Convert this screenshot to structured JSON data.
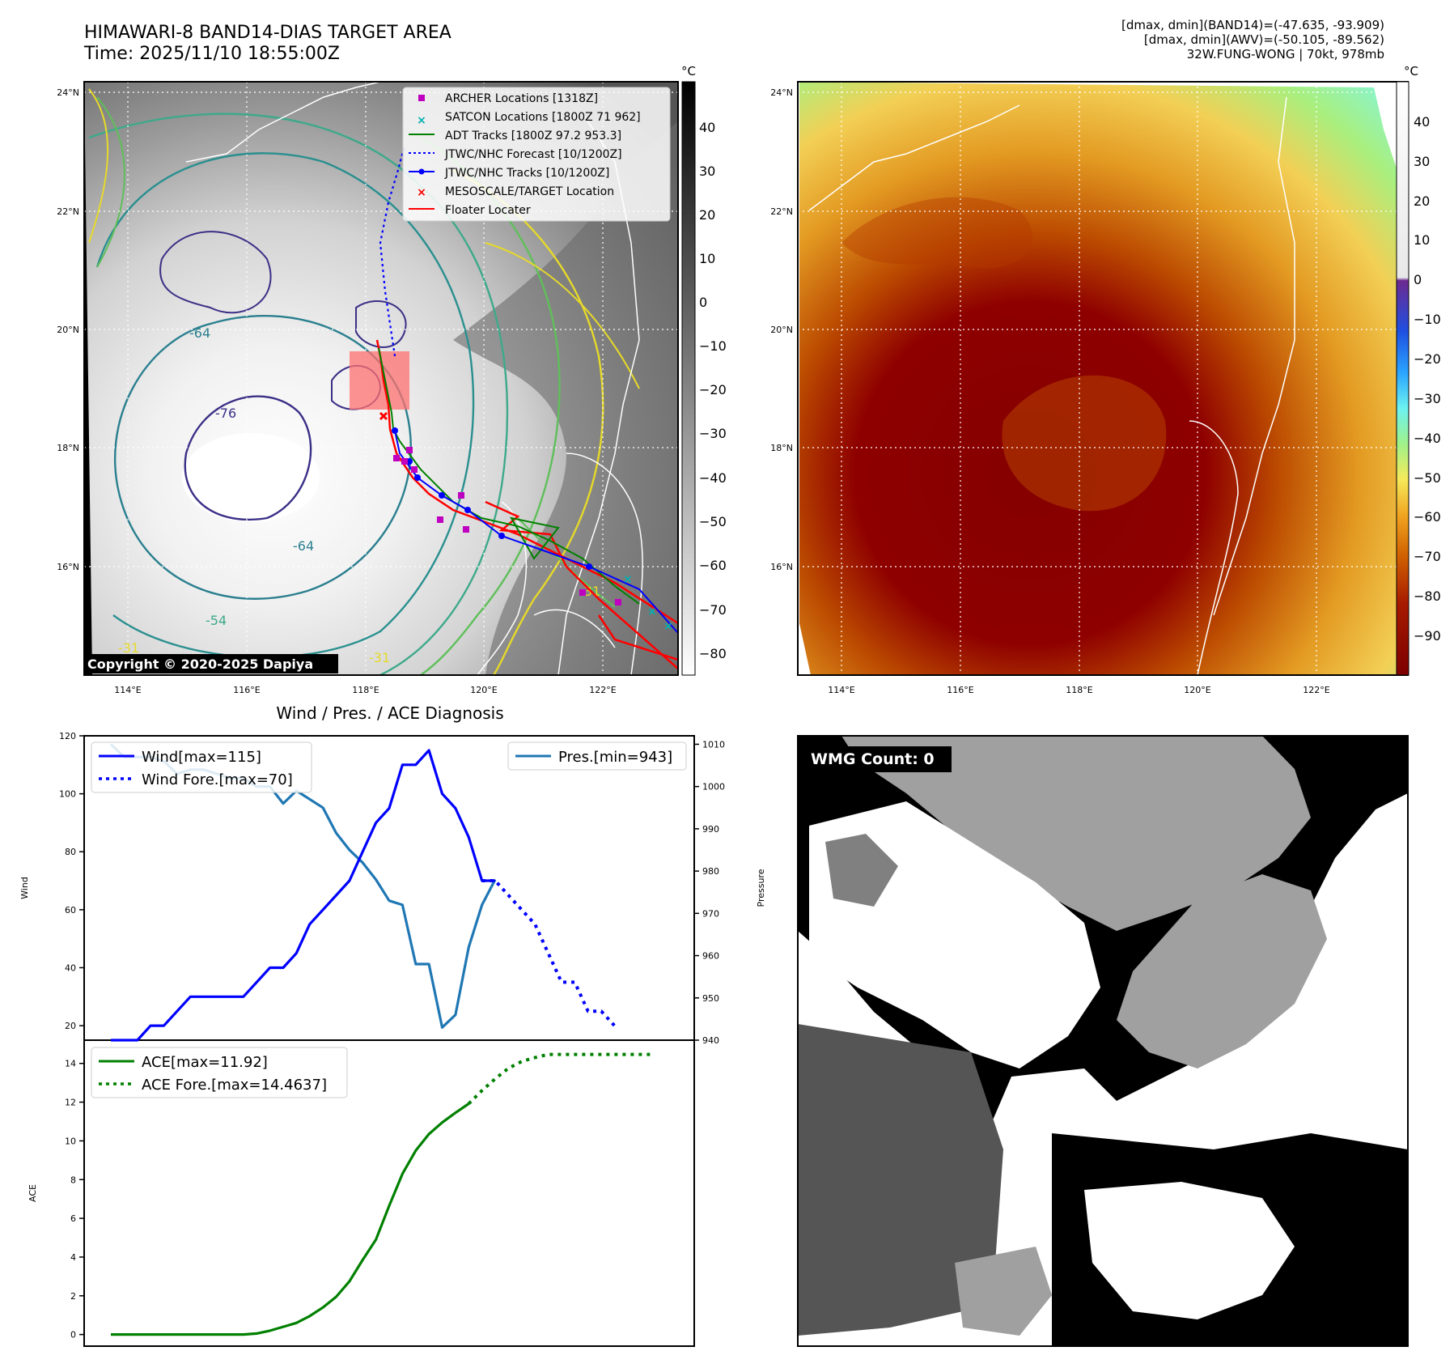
{
  "header": {
    "title_line1": "HIMAWARI-8 BAND14-DIAS TARGET AREA",
    "title_line2": "Time: 2025/11/10 18:55:00Z",
    "info_line1": "[dmax, dmin](BAND14)=(-47.635, -93.909)",
    "info_line2": "[dmax, dmin](AWV)=(-50.105, -89.562)",
    "info_line3": "32W.FUNG-WONG | 70kt, 978mb"
  },
  "map": {
    "lon_ticks": [
      "114°E",
      "116°E",
      "118°E",
      "120°E",
      "122°E"
    ],
    "lat_ticks": [
      "24°N",
      "22°N",
      "20°N",
      "18°N",
      "16°N"
    ],
    "copyright": "Copyright © 2020-2025 Dapiya",
    "contour_labels": [
      "-64",
      "-76",
      "-64",
      "-54",
      "-31",
      "-31",
      "-31"
    ],
    "legend": [
      "ARCHER Locations [1318Z]",
      "SATCON Locations [1800Z 71 962]",
      "ADT Tracks [1800Z 97.2 953.3]",
      "JTWC/NHC Forecast [10/1200Z]",
      "JTWC/NHC Tracks [10/1200Z]",
      "MESOSCALE/TARGET Location",
      "Floater Locater"
    ],
    "colors": {
      "archer": "#c000c0",
      "satcon": "#00b0b0",
      "adt": "#008000",
      "jtwc": "#0000ff",
      "target": "#ff0000",
      "floater": "#ff0000"
    }
  },
  "colorbar_left": {
    "unit": "°C",
    "ticks": [
      "40",
      "30",
      "20",
      "10",
      "0",
      "−10",
      "−20",
      "−30",
      "−40",
      "−50",
      "−60",
      "−70",
      "−80"
    ]
  },
  "colorbar_right": {
    "unit": "°C",
    "ticks": [
      "40",
      "30",
      "20",
      "10",
      "0",
      "−10",
      "−20",
      "−30",
      "−40",
      "−50",
      "−60",
      "−70",
      "−80",
      "−90"
    ]
  },
  "wmg": {
    "label": "WMG Count: 0"
  },
  "chart_data": [
    {
      "type": "line",
      "title": "Wind / Pres. / ACE Diagnosis",
      "ylabel": "Wind",
      "ylim": [
        15,
        120
      ],
      "yticks": [
        "20",
        "40",
        "60",
        "80",
        "100",
        "120"
      ],
      "y2label": "Pressure",
      "y2lim": [
        940,
        1012
      ],
      "y2ticks": [
        "940",
        "950",
        "960",
        "970",
        "980",
        "990",
        "1000",
        "1010"
      ],
      "x_count": 43,
      "series": [
        {
          "name": "Wind[max=115]",
          "color": "#0000ff",
          "style": "solid",
          "axis": "left",
          "values": [
            15,
            15,
            15,
            20,
            20,
            25,
            30,
            30,
            30,
            30,
            30,
            35,
            40,
            40,
            45,
            55,
            60,
            65,
            70,
            80,
            90,
            95,
            110,
            110,
            115,
            100,
            95,
            85,
            70,
            70
          ]
        },
        {
          "name": "Wind Fore.[max=70]",
          "color": "#0000ff",
          "style": "dotted",
          "axis": "left",
          "start": 28,
          "values": [
            70,
            70,
            65,
            60,
            55,
            45,
            35,
            35,
            25,
            25,
            20
          ]
        },
        {
          "name": "Pres.[min=943]",
          "color": "#1f77b4",
          "style": "solid",
          "axis": "right",
          "values": [
            1010,
            1007,
            1007,
            1007,
            1006,
            1003,
            1004,
            1004,
            1003,
            1002,
            1002,
            1000,
            1000,
            996,
            999,
            997,
            995,
            989,
            985,
            982,
            978,
            973,
            972,
            958,
            958,
            943,
            946,
            962,
            972,
            978
          ]
        }
      ]
    },
    {
      "type": "line",
      "ylabel": "ACE",
      "ylim": [
        -0.6,
        15.2
      ],
      "yticks": [
        "0",
        "2",
        "4",
        "6",
        "8",
        "10",
        "12",
        "14"
      ],
      "x_count": 43,
      "series": [
        {
          "name": "ACE[max=11.92]",
          "color": "#008000",
          "style": "solid",
          "values": [
            0,
            0,
            0,
            0,
            0,
            0,
            0,
            0,
            0,
            0,
            0,
            0.05,
            0.2,
            0.4,
            0.6,
            0.95,
            1.4,
            1.95,
            2.75,
            3.85,
            4.9,
            6.65,
            8.3,
            9.5,
            10.35,
            10.95,
            11.45,
            11.92
          ]
        },
        {
          "name": "ACE Fore.[max=14.4637]",
          "color": "#008000",
          "style": "dotted",
          "start": 27,
          "values": [
            11.92,
            12.6,
            13.2,
            13.75,
            14.1,
            14.3,
            14.4637,
            14.4637,
            14.4637,
            14.4637,
            14.4637,
            14.4637,
            14.4637,
            14.4637,
            14.4637
          ]
        }
      ]
    }
  ]
}
